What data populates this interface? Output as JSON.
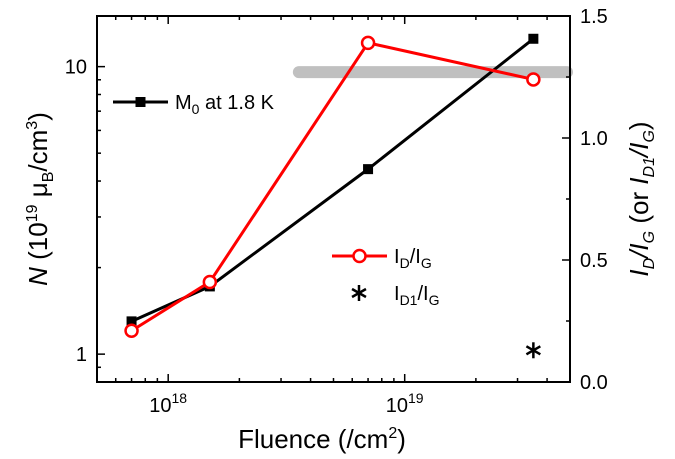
{
  "chart_data": {
    "type": "line",
    "title": "",
    "x_axis": {
      "label": "Fluence (/cm²)",
      "scale": "log",
      "range": [
        5e+17,
        5e+19
      ],
      "ticks": [
        {
          "value": 1e+18,
          "base": "10",
          "exp": "18"
        },
        {
          "value": 1e+19,
          "base": "10",
          "exp": "19"
        }
      ]
    },
    "y_left": {
      "label": "N (10¹⁹ μB/cm³)",
      "scale": "log",
      "range": [
        0.8,
        15
      ],
      "ticks": [
        {
          "value": 1,
          "label": "1"
        },
        {
          "value": 10,
          "label": "10"
        }
      ]
    },
    "y_right": {
      "label": "ID/IG (or ID1/IG)",
      "scale": "linear",
      "range": [
        0,
        1.5
      ],
      "ticks": [
        {
          "value": 0.0,
          "label": "0.0"
        },
        {
          "value": 0.5,
          "label": "0.5"
        },
        {
          "value": 1.0,
          "label": "1.0"
        },
        {
          "value": 1.5,
          "label": "1.5"
        }
      ]
    },
    "series": [
      {
        "name": "M0 at 1.8 K",
        "axis": "left",
        "color": "#000000",
        "marker": "filled-square",
        "x": [
          7e+17,
          1.5e+18,
          7e+18,
          3.5e+19
        ],
        "y": [
          1.3,
          1.72,
          4.4,
          12.5
        ]
      },
      {
        "name": "ID/IG",
        "axis": "right",
        "color": "#ff0000",
        "marker": "open-circle",
        "x": [
          7e+17,
          1.5e+18,
          7e+18,
          3.5e+19
        ],
        "y": [
          0.21,
          0.41,
          1.39,
          1.24
        ]
      },
      {
        "name": "ID1/IG",
        "axis": "right",
        "color": "#000000",
        "marker": "asterisk",
        "x": [
          3.5e+19
        ],
        "y": [
          0.13
        ]
      }
    ],
    "band": {
      "axis": "right",
      "x_range": [
        3.5e+18,
        5e+19
      ],
      "y": 1.27,
      "color": "#c0c0c0"
    },
    "legend": {
      "entries": [
        {
          "series": 0,
          "main": "M",
          "sub": "0",
          "rest": " at 1.8 K"
        },
        {
          "series": 1,
          "main1": "I",
          "sub1": "D",
          "mid": "/I",
          "sub2": "G"
        },
        {
          "series": 2,
          "main1": "I",
          "sub1": "D1",
          "mid": "/I",
          "sub2": "G"
        }
      ]
    },
    "grid": false
  }
}
